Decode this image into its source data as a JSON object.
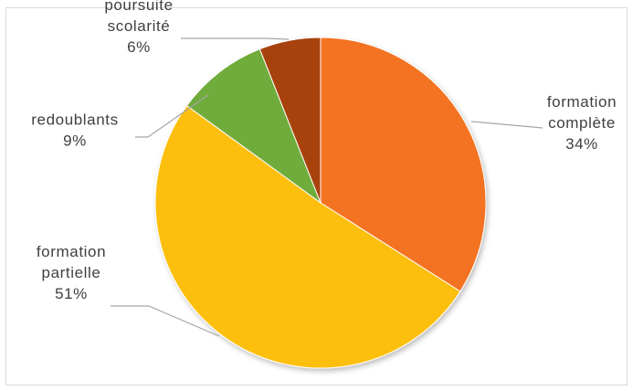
{
  "chart_data": {
    "type": "pie",
    "title": "",
    "legend": "none",
    "start_angle_deg": 0,
    "direction": "clockwise",
    "slices": [
      {
        "label_lines": [
          "formation",
          "complète"
        ],
        "value": 34,
        "value_label": "34%",
        "color": "#f47320"
      },
      {
        "label_lines": [
          "formation",
          "partielle"
        ],
        "value": 51,
        "value_label": "51%",
        "color": "#fdbf0f"
      },
      {
        "label_lines": [
          "redoublants"
        ],
        "value": 9,
        "value_label": "9%",
        "color": "#6fac3a"
      },
      {
        "label_lines": [
          "poursuite",
          "scolarité"
        ],
        "value": 6,
        "value_label": "6%",
        "color": "#a84309"
      }
    ]
  }
}
